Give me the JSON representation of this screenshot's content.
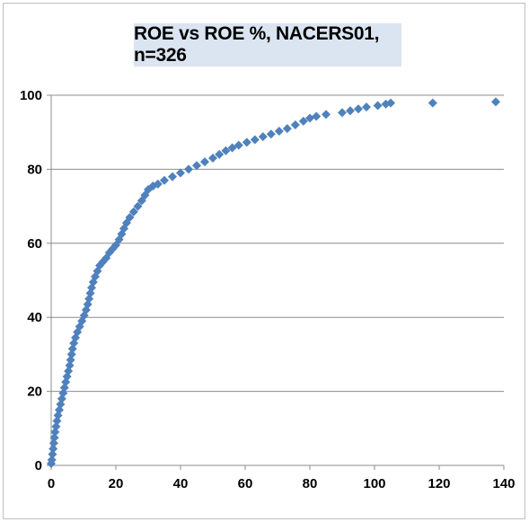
{
  "chart_data": {
    "type": "scatter",
    "title": "ROE vs ROE %, NACERS01, n=326",
    "xlabel": "",
    "ylabel": "",
    "xlim": [
      0,
      140
    ],
    "ylim": [
      0,
      100
    ],
    "xticks": [
      "0",
      "20",
      "40",
      "60",
      "80",
      "100",
      "120",
      "140"
    ],
    "yticks": [
      "0",
      "20",
      "40",
      "60",
      "80",
      "100"
    ],
    "grid": "horizontal",
    "legend": "none",
    "marker": "diamond",
    "color": "#4f81bd",
    "points": [
      [
        0.0,
        0.5
      ],
      [
        0.2,
        1.5
      ],
      [
        0.4,
        3.0
      ],
      [
        0.6,
        4.5
      ],
      [
        0.8,
        6.0
      ],
      [
        1.0,
        7.5
      ],
      [
        1.2,
        9.0
      ],
      [
        1.5,
        10.5
      ],
      [
        1.8,
        12.0
      ],
      [
        2.1,
        13.5
      ],
      [
        2.5,
        15.0
      ],
      [
        2.9,
        16.5
      ],
      [
        3.3,
        18.0
      ],
      [
        3.7,
        19.5
      ],
      [
        4.1,
        21.0
      ],
      [
        4.5,
        22.5
      ],
      [
        4.9,
        24.0
      ],
      [
        5.3,
        25.5
      ],
      [
        5.7,
        27.0
      ],
      [
        6.0,
        28.5
      ],
      [
        6.3,
        30.0
      ],
      [
        6.6,
        31.5
      ],
      [
        7.0,
        33.0
      ],
      [
        7.5,
        34.5
      ],
      [
        8.1,
        36.0
      ],
      [
        8.8,
        37.5
      ],
      [
        9.5,
        39.0
      ],
      [
        10.2,
        40.5
      ],
      [
        10.8,
        42.0
      ],
      [
        11.3,
        43.5
      ],
      [
        11.7,
        45.0
      ],
      [
        12.1,
        46.5
      ],
      [
        12.5,
        48.0
      ],
      [
        13.0,
        49.5
      ],
      [
        13.6,
        51.0
      ],
      [
        14.3,
        52.5
      ],
      [
        15.0,
        54.0
      ],
      [
        16.0,
        55.0
      ],
      [
        17.0,
        56.0
      ],
      [
        18.0,
        57.5
      ],
      [
        19.0,
        58.5
      ],
      [
        20.0,
        59.5
      ],
      [
        21.0,
        61.0
      ],
      [
        21.8,
        62.5
      ],
      [
        22.5,
        64.0
      ],
      [
        23.3,
        65.5
      ],
      [
        24.3,
        67.0
      ],
      [
        25.5,
        68.5
      ],
      [
        26.8,
        70.0
      ],
      [
        28.0,
        71.5
      ],
      [
        29.0,
        73.0
      ],
      [
        30.0,
        74.5
      ],
      [
        31.5,
        75.5
      ],
      [
        33.0,
        76.0
      ],
      [
        35.0,
        77.0
      ],
      [
        37.5,
        78.0
      ],
      [
        40.0,
        79.0
      ],
      [
        42.5,
        80.0
      ],
      [
        45.0,
        81.0
      ],
      [
        47.5,
        82.0
      ],
      [
        50.0,
        83.0
      ],
      [
        52.0,
        84.0
      ],
      [
        54.0,
        85.0
      ],
      [
        56.0,
        85.8
      ],
      [
        58.0,
        86.5
      ],
      [
        60.5,
        87.3
      ],
      [
        63.0,
        88.0
      ],
      [
        65.5,
        88.8
      ],
      [
        68.0,
        89.5
      ],
      [
        70.5,
        90.3
      ],
      [
        73.0,
        91.0
      ],
      [
        75.5,
        92.0
      ],
      [
        78.0,
        93.0
      ],
      [
        80.0,
        93.8
      ],
      [
        82.0,
        94.3
      ],
      [
        85.0,
        94.8
      ],
      [
        90.0,
        95.3
      ],
      [
        92.5,
        95.8
      ],
      [
        95.0,
        96.3
      ],
      [
        97.5,
        96.8
      ],
      [
        101.0,
        97.2
      ],
      [
        103.5,
        97.6
      ],
      [
        105.0,
        97.9
      ],
      [
        118.0,
        97.9
      ],
      [
        137.5,
        98.2
      ]
    ]
  }
}
